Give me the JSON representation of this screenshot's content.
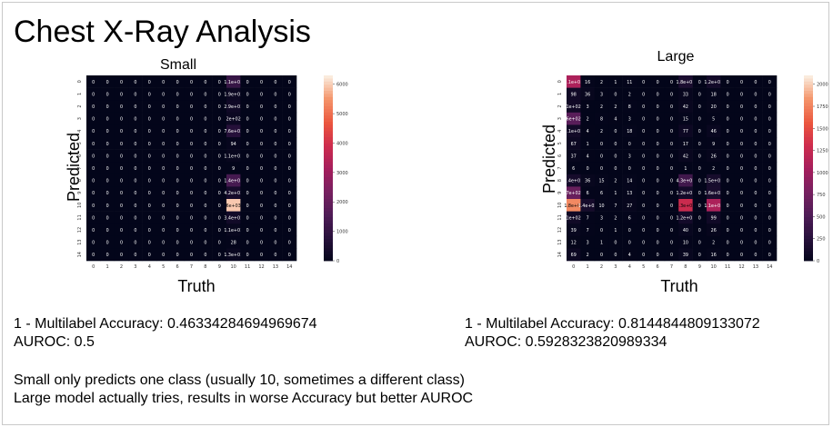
{
  "slide": {
    "title": "Chest X-Ray Analysis",
    "small": {
      "name": "Small",
      "accuracy": "1 - Multilabel Accuracy: 0.46334284694969674",
      "auroc": "AUROC: 0.5"
    },
    "large": {
      "name": "Large",
      "accuracy": "1 - Multilabel Accuracy: 0.8144844809133072",
      "auroc": "AUROC: 0.5928323820989334"
    },
    "notes": [
      "Small only predicts one class (usually 10, sometimes a different class)",
      "Large model actually tries, results in worse Accuracy but better AUROC"
    ]
  },
  "chart_data": [
    {
      "type": "heatmap",
      "title": "Small",
      "xlabel": "Truth",
      "ylabel": "Predicted",
      "x_ticks": [
        "0",
        "1",
        "2",
        "3",
        "4",
        "5",
        "6",
        "7",
        "8",
        "9",
        "10",
        "11",
        "12",
        "13",
        "14"
      ],
      "y_ticks": [
        "0",
        "1",
        "2",
        "3",
        "4",
        "5",
        "6",
        "7",
        "8",
        "9",
        "10",
        "11",
        "12",
        "13",
        "14"
      ],
      "colorbar": {
        "ticks": [
          0,
          1000,
          2000,
          3000,
          4000,
          5000,
          6000
        ],
        "vmax": 6300
      },
      "labels": [
        [
          "0",
          "0",
          "0",
          "0",
          "0",
          "0",
          "0",
          "0",
          "0",
          "0",
          "1.1e+03",
          "0",
          "0",
          "0",
          "0"
        ],
        [
          "0",
          "0",
          "0",
          "0",
          "0",
          "0",
          "0",
          "0",
          "0",
          "0",
          "1.9e+02",
          "0",
          "0",
          "0",
          "0"
        ],
        [
          "0",
          "0",
          "0",
          "0",
          "0",
          "0",
          "0",
          "0",
          "0",
          "0",
          "2.9e+02",
          "0",
          "0",
          "0",
          "0"
        ],
        [
          "0",
          "0",
          "0",
          "0",
          "0",
          "0",
          "0",
          "0",
          "0",
          "0",
          "2e+02",
          "0",
          "0",
          "0",
          "0"
        ],
        [
          "0",
          "0",
          "0",
          "0",
          "0",
          "0",
          "0",
          "0",
          "0",
          "0",
          "7.6e+02",
          "0",
          "0",
          "0",
          "0"
        ],
        [
          "0",
          "0",
          "0",
          "0",
          "0",
          "0",
          "0",
          "0",
          "0",
          "0",
          "94",
          "0",
          "0",
          "0",
          "0"
        ],
        [
          "0",
          "0",
          "0",
          "0",
          "0",
          "0",
          "0",
          "0",
          "0",
          "0",
          "1.1e+02",
          "0",
          "0",
          "0",
          "0"
        ],
        [
          "0",
          "0",
          "0",
          "0",
          "0",
          "0",
          "0",
          "0",
          "0",
          "0",
          "9",
          "0",
          "0",
          "0",
          "0"
        ],
        [
          "0",
          "0",
          "0",
          "0",
          "0",
          "0",
          "0",
          "0",
          "0",
          "0",
          "1.4e+03",
          "0",
          "0",
          "0",
          "0"
        ],
        [
          "0",
          "0",
          "0",
          "0",
          "0",
          "0",
          "0",
          "0",
          "0",
          "0",
          "4.2e+02",
          "0",
          "0",
          "0",
          "0"
        ],
        [
          "0",
          "0",
          "0",
          "0",
          "0",
          "0",
          "0",
          "0",
          "0",
          "0",
          "6e+03",
          "0",
          "0",
          "0",
          "0"
        ],
        [
          "0",
          "0",
          "0",
          "0",
          "0",
          "0",
          "0",
          "0",
          "0",
          "0",
          "3.4e+02",
          "0",
          "0",
          "0",
          "0"
        ],
        [
          "0",
          "0",
          "0",
          "0",
          "0",
          "0",
          "0",
          "0",
          "0",
          "0",
          "1.1e+02",
          "0",
          "0",
          "0",
          "0"
        ],
        [
          "0",
          "0",
          "0",
          "0",
          "0",
          "0",
          "0",
          "0",
          "0",
          "0",
          "28",
          "0",
          "0",
          "0",
          "0"
        ],
        [
          "0",
          "0",
          "0",
          "0",
          "0",
          "0",
          "0",
          "0",
          "0",
          "0",
          "1.3e+02",
          "0",
          "0",
          "0",
          "0"
        ]
      ],
      "values": [
        [
          0,
          0,
          0,
          0,
          0,
          0,
          0,
          0,
          0,
          0,
          1100,
          0,
          0,
          0,
          0
        ],
        [
          0,
          0,
          0,
          0,
          0,
          0,
          0,
          0,
          0,
          0,
          190,
          0,
          0,
          0,
          0
        ],
        [
          0,
          0,
          0,
          0,
          0,
          0,
          0,
          0,
          0,
          0,
          290,
          0,
          0,
          0,
          0
        ],
        [
          0,
          0,
          0,
          0,
          0,
          0,
          0,
          0,
          0,
          0,
          200,
          0,
          0,
          0,
          0
        ],
        [
          0,
          0,
          0,
          0,
          0,
          0,
          0,
          0,
          0,
          0,
          760,
          0,
          0,
          0,
          0
        ],
        [
          0,
          0,
          0,
          0,
          0,
          0,
          0,
          0,
          0,
          0,
          94,
          0,
          0,
          0,
          0
        ],
        [
          0,
          0,
          0,
          0,
          0,
          0,
          0,
          0,
          0,
          0,
          110,
          0,
          0,
          0,
          0
        ],
        [
          0,
          0,
          0,
          0,
          0,
          0,
          0,
          0,
          0,
          0,
          9,
          0,
          0,
          0,
          0
        ],
        [
          0,
          0,
          0,
          0,
          0,
          0,
          0,
          0,
          0,
          0,
          1400,
          0,
          0,
          0,
          0
        ],
        [
          0,
          0,
          0,
          0,
          0,
          0,
          0,
          0,
          0,
          0,
          420,
          0,
          0,
          0,
          0
        ],
        [
          0,
          0,
          0,
          0,
          0,
          0,
          0,
          0,
          0,
          0,
          6000,
          0,
          0,
          0,
          0
        ],
        [
          0,
          0,
          0,
          0,
          0,
          0,
          0,
          0,
          0,
          0,
          340,
          0,
          0,
          0,
          0
        ],
        [
          0,
          0,
          0,
          0,
          0,
          0,
          0,
          0,
          0,
          0,
          110,
          0,
          0,
          0,
          0
        ],
        [
          0,
          0,
          0,
          0,
          0,
          0,
          0,
          0,
          0,
          0,
          28,
          0,
          0,
          0,
          0
        ],
        [
          0,
          0,
          0,
          0,
          0,
          0,
          0,
          0,
          0,
          0,
          130,
          0,
          0,
          0,
          0
        ]
      ]
    },
    {
      "type": "heatmap",
      "title": "Large",
      "xlabel": "Truth",
      "ylabel": "Predicted",
      "x_ticks": [
        "0",
        "1",
        "2",
        "3",
        "4",
        "5",
        "6",
        "7",
        "8",
        "9",
        "10",
        "11",
        "12",
        "13",
        "14"
      ],
      "y_ticks": [
        "0",
        "1",
        "2",
        "3",
        "4",
        "5",
        "6",
        "7",
        "8",
        "9",
        "10",
        "11",
        "12",
        "13",
        "14"
      ],
      "colorbar": {
        "ticks": [
          0,
          250,
          500,
          750,
          1000,
          1250,
          1500,
          1750,
          2000
        ],
        "vmax": 2100
      },
      "labels": [
        [
          "1.1e+03",
          "16",
          "2",
          "1",
          "11",
          "0",
          "0",
          "0",
          "1.8e+02",
          "0",
          "1.2e+02",
          "0",
          "0",
          "0",
          "0"
        ],
        [
          "98",
          "36",
          "3",
          "0",
          "2",
          "0",
          "0",
          "0",
          "33",
          "0",
          "18",
          "0",
          "0",
          "0",
          "0"
        ],
        [
          "1e+02",
          "3",
          "2",
          "2",
          "8",
          "0",
          "0",
          "0",
          "42",
          "0",
          "20",
          "0",
          "0",
          "0",
          "0"
        ],
        [
          "6e+02",
          "2",
          "8",
          "4",
          "3",
          "0",
          "0",
          "0",
          "15",
          "0",
          "5",
          "0",
          "0",
          "0",
          "0"
        ],
        [
          "1.1e+02",
          "4",
          "2",
          "0",
          "18",
          "0",
          "0",
          "0",
          "77",
          "0",
          "46",
          "0",
          "0",
          "0",
          "0"
        ],
        [
          "67",
          "1",
          "0",
          "0",
          "0",
          "0",
          "0",
          "0",
          "17",
          "0",
          "9",
          "0",
          "0",
          "0",
          "0"
        ],
        [
          "37",
          "4",
          "0",
          "0",
          "3",
          "0",
          "0",
          "0",
          "42",
          "0",
          "26",
          "0",
          "0",
          "0",
          "0"
        ],
        [
          "6",
          "0",
          "0",
          "0",
          "0",
          "0",
          "0",
          "0",
          "1",
          "0",
          "2",
          "0",
          "0",
          "0",
          "0"
        ],
        [
          "1.4e+02",
          "36",
          "15",
          "2",
          "14",
          "0",
          "0",
          "0",
          "4.3e+02",
          "0",
          "1.5e+02",
          "0",
          "0",
          "0",
          "0"
        ],
        [
          "7e+02",
          "6",
          "6",
          "1",
          "13",
          "0",
          "0",
          "0",
          "1.2e+02",
          "0",
          "1.6e+02",
          "0",
          "0",
          "0",
          "0"
        ],
        [
          "1.8e+03",
          "1.4e+02",
          "10",
          "7",
          "27",
          "0",
          "0",
          "0",
          "1.3e+03",
          "0",
          "1.1e+03",
          "0",
          "0",
          "0",
          "0"
        ],
        [
          "1e+02",
          "7",
          "3",
          "2",
          "6",
          "0",
          "0",
          "0",
          "1.2e+02",
          "0",
          "99",
          "0",
          "0",
          "0",
          "0"
        ],
        [
          "39",
          "7",
          "0",
          "1",
          "0",
          "0",
          "0",
          "0",
          "40",
          "0",
          "26",
          "0",
          "0",
          "0",
          "0"
        ],
        [
          "12",
          "3",
          "1",
          "0",
          "0",
          "0",
          "0",
          "0",
          "10",
          "0",
          "2",
          "0",
          "0",
          "0",
          "0"
        ],
        [
          "69",
          "2",
          "0",
          "0",
          "4",
          "0",
          "0",
          "0",
          "39",
          "0",
          "16",
          "0",
          "0",
          "0",
          "0"
        ]
      ],
      "values": [
        [
          1100,
          16,
          2,
          1,
          11,
          0,
          0,
          0,
          180,
          0,
          120,
          0,
          0,
          0,
          0
        ],
        [
          98,
          36,
          3,
          0,
          2,
          0,
          0,
          0,
          33,
          0,
          18,
          0,
          0,
          0,
          0
        ],
        [
          100,
          3,
          2,
          2,
          8,
          0,
          0,
          0,
          42,
          0,
          20,
          0,
          0,
          0,
          0
        ],
        [
          600,
          2,
          8,
          4,
          3,
          0,
          0,
          0,
          15,
          0,
          5,
          0,
          0,
          0,
          0
        ],
        [
          110,
          4,
          2,
          0,
          18,
          0,
          0,
          0,
          77,
          0,
          46,
          0,
          0,
          0,
          0
        ],
        [
          67,
          1,
          0,
          0,
          0,
          0,
          0,
          0,
          17,
          0,
          9,
          0,
          0,
          0,
          0
        ],
        [
          37,
          4,
          0,
          0,
          3,
          0,
          0,
          0,
          42,
          0,
          26,
          0,
          0,
          0,
          0
        ],
        [
          6,
          0,
          0,
          0,
          0,
          0,
          0,
          0,
          1,
          0,
          2,
          0,
          0,
          0,
          0
        ],
        [
          140,
          36,
          15,
          2,
          14,
          0,
          0,
          0,
          430,
          0,
          150,
          0,
          0,
          0,
          0
        ],
        [
          700,
          6,
          6,
          1,
          13,
          0,
          0,
          0,
          120,
          0,
          160,
          0,
          0,
          0,
          0
        ],
        [
          1800,
          140,
          10,
          7,
          27,
          0,
          0,
          0,
          1300,
          0,
          1100,
          0,
          0,
          0,
          0
        ],
        [
          100,
          7,
          3,
          2,
          6,
          0,
          0,
          0,
          120,
          0,
          99,
          0,
          0,
          0,
          0
        ],
        [
          39,
          7,
          0,
          1,
          0,
          0,
          0,
          0,
          40,
          0,
          26,
          0,
          0,
          0,
          0
        ],
        [
          12,
          3,
          1,
          0,
          0,
          0,
          0,
          0,
          10,
          0,
          2,
          0,
          0,
          0,
          0
        ],
        [
          69,
          2,
          0,
          0,
          4,
          0,
          0,
          0,
          39,
          0,
          16,
          0,
          0,
          0,
          0
        ]
      ]
    }
  ]
}
